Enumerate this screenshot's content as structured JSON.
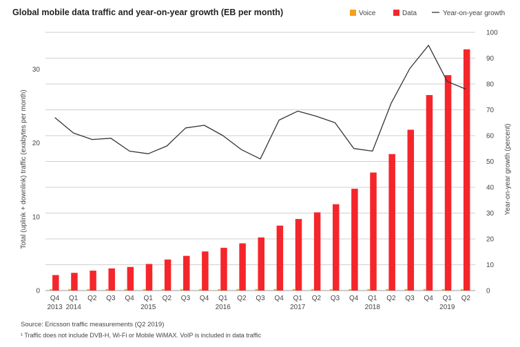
{
  "chart_data": {
    "type": "bar",
    "title": "Global mobile data traffic and year-on-year growth (EB per month)",
    "ylabel": "Total (uplink + downlink) traffic (exabytes per month)",
    "y2label": "Year-on-year growth (percent)",
    "ylim": [
      0,
      35
    ],
    "y2lim": [
      0,
      100
    ],
    "yticks": [
      0,
      10,
      20,
      30
    ],
    "y2ticks": [
      0,
      10,
      20,
      30,
      40,
      50,
      60,
      70,
      80,
      90,
      100
    ],
    "legend_position": "top-right",
    "categories": [
      "Q4",
      "Q1",
      "Q2",
      "Q3",
      "Q4",
      "Q1",
      "Q2",
      "Q3",
      "Q4",
      "Q1",
      "Q2",
      "Q3",
      "Q4",
      "Q1",
      "Q2",
      "Q3",
      "Q4",
      "Q1",
      "Q2",
      "Q3",
      "Q4",
      "Q1",
      "Q2"
    ],
    "year_labels": [
      "2013",
      "2014",
      "",
      "",
      "",
      "2015",
      "",
      "",
      "",
      "2016",
      "",
      "",
      "",
      "2017",
      "",
      "",
      "",
      "2018",
      "",
      "",
      "",
      "2019",
      ""
    ],
    "series": [
      {
        "name": "Voice",
        "type": "bar",
        "color": "#f5a01a",
        "values": [
          0.2,
          0.2,
          0.2,
          0.2,
          0.2,
          0.2,
          0.2,
          0.2,
          0.2,
          0.2,
          0.2,
          0.2,
          0.2,
          0.2,
          0.2,
          0.2,
          0.2,
          0.2,
          0.2,
          0.2,
          0.2,
          0.2,
          0.2
        ]
      },
      {
        "name": "Data",
        "type": "bar",
        "color": "#f5262b",
        "values": [
          2.1,
          2.4,
          2.7,
          3.0,
          3.2,
          3.6,
          4.2,
          4.7,
          5.3,
          5.8,
          6.4,
          7.2,
          8.8,
          9.7,
          10.6,
          11.7,
          13.8,
          16.0,
          18.5,
          21.8,
          26.5,
          29.2,
          32.7
        ]
      },
      {
        "name": "Year-on-year growth",
        "type": "line",
        "axis": "right",
        "color": "#333333",
        "values": [
          67,
          61,
          58.5,
          59,
          54,
          53,
          56,
          63,
          64,
          60,
          54.5,
          51,
          66,
          69.5,
          67.5,
          65,
          55,
          54,
          72.5,
          86,
          95,
          81,
          78
        ]
      }
    ]
  },
  "footnotes": {
    "source": "Source: Ericsson traffic measurements (Q2 2019)",
    "note": "¹ Traffic does not include DVB-H, Wi-Fi or Mobile WiMAX. VoIP is included in data traffic"
  }
}
